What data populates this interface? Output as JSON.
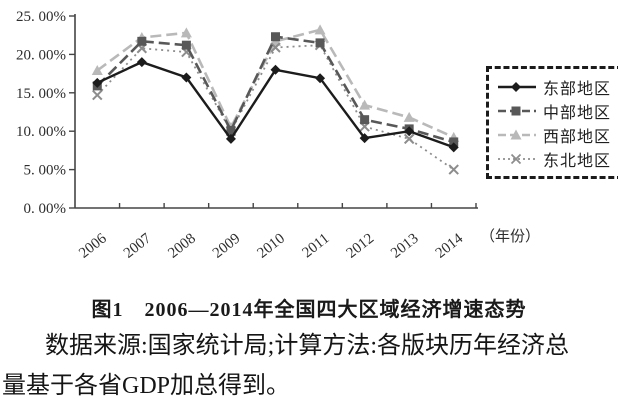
{
  "chart_data": {
    "type": "line",
    "categories": [
      "2006",
      "2007",
      "2008",
      "2009",
      "2010",
      "2011",
      "2012",
      "2013",
      "2014"
    ],
    "x_axis_label": "（年份）",
    "y_axis": {
      "min": 0,
      "max": 25,
      "tick_values": [
        0,
        5,
        10,
        15,
        20,
        25
      ],
      "tick_labels": [
        "0. 00%",
        "5. 00%",
        "10. 00%",
        "15. 00%",
        "20. 00%",
        "25. 00%"
      ]
    },
    "grid": false,
    "legend_position": "right",
    "series": [
      {
        "key": "east",
        "name": "东部地区",
        "marker": "diamond",
        "line": "solid",
        "dash": "",
        "color": "#1c1c1c",
        "values": [
          16.3,
          19.0,
          17.0,
          9.0,
          18.0,
          16.9,
          9.1,
          10.0,
          7.9
        ]
      },
      {
        "key": "central",
        "name": "中部地区",
        "marker": "square",
        "line": "dashed",
        "dash": "11,5",
        "color": "#585858",
        "values": [
          15.9,
          21.7,
          21.2,
          10.1,
          22.3,
          21.5,
          11.5,
          10.3,
          8.6
        ]
      },
      {
        "key": "west",
        "name": "西部地区",
        "marker": "triangle",
        "line": "dashed",
        "dash": "11,5",
        "color": "#b9b9b9",
        "values": [
          17.9,
          22.2,
          22.8,
          10.5,
          21.7,
          23.2,
          13.4,
          11.8,
          9.2
        ]
      },
      {
        "key": "northeast",
        "name": "东北地区",
        "marker": "x",
        "line": "dotted",
        "dash": "2,4",
        "color": "#8d8d8d",
        "values": [
          14.7,
          20.8,
          20.3,
          10.0,
          20.9,
          21.2,
          10.6,
          9.0,
          5.0
        ]
      }
    ]
  },
  "caption": {
    "title": "图1　2006—2014年全国四大区域经济增速态势",
    "source_line1": "数据来源:国家统计局;计算方法:各版块历年经济总",
    "source_line2": "量基于各省GDP加总得到。"
  }
}
